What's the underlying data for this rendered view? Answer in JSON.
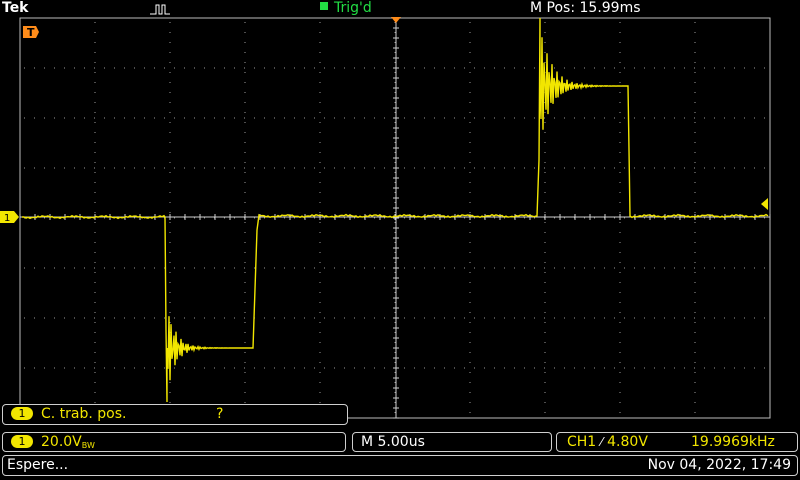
{
  "header": {
    "brand": "Tek",
    "trigger_status": "Trig'd",
    "horizontal_position": "M Pos: 15.99ms"
  },
  "screen": {
    "trigger_marker_label": "T",
    "channel_marker_label": "1"
  },
  "measure": {
    "channel": "1",
    "label": "C. trab. pos.",
    "value": "?"
  },
  "channel_settings": {
    "channel": "1",
    "scale": "20.0V",
    "bandwidth": "BW"
  },
  "timebase": {
    "scale": "M 5.00us"
  },
  "trigger": {
    "source": "CH1",
    "slope_symbol": "⁄",
    "level": "4.80V",
    "frequency": "19.9969kHz"
  },
  "status": {
    "message": "Espere...",
    "datetime": "Nov 04, 2022, 17:49"
  },
  "colors": {
    "ch1": "#f2e600",
    "grid": "#b8b8b8",
    "trigger_text": "#22dd44",
    "marker_orange": "#ff8c1a"
  }
}
